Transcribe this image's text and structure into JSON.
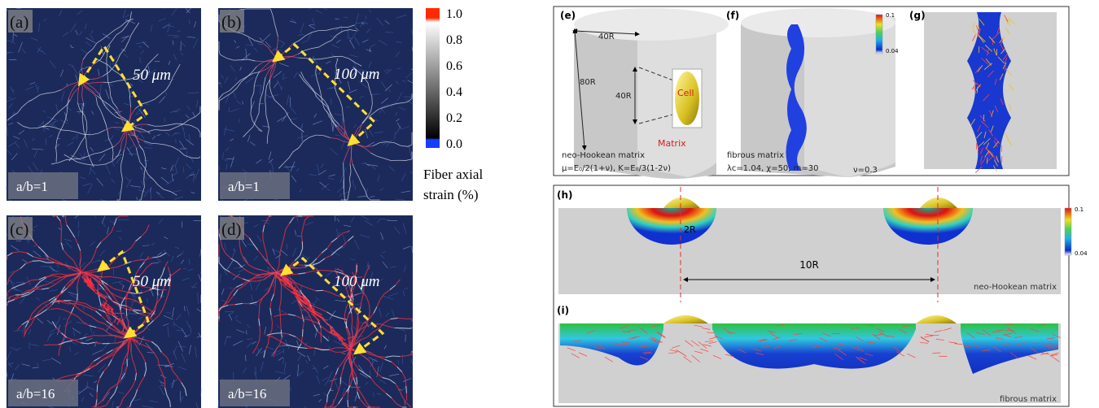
{
  "left_panels": [
    {
      "label": "(a)",
      "scale": "50 μm",
      "ratio": "a/b=1"
    },
    {
      "label": "(b)",
      "scale": "100 μm",
      "ratio": "a/b=1"
    },
    {
      "label": "(c)",
      "scale": "50 μm",
      "ratio": "a/b=16"
    },
    {
      "label": "(d)",
      "scale": "100 μm",
      "ratio": "a/b=16"
    }
  ],
  "colorbar": {
    "ticks": [
      "1.0",
      "0.8",
      "0.6",
      "0.4",
      "0.2",
      "0.0"
    ],
    "title": [
      "Fiber axial",
      "strain (%)"
    ]
  },
  "panel_e": {
    "label": "(e)",
    "width": "40R",
    "height": "80R",
    "spacing": "40R",
    "cell": "Cell",
    "matrix": "Matrix",
    "material": "neo-Hookean matrix",
    "params": "μ=E₀/2(1+ν),  Κ=E₀/3(1-2ν)"
  },
  "panel_f": {
    "label": "(f)",
    "scale_max": "0.1",
    "scale_min": "0.04",
    "material": "fibrous matrix",
    "params": "λc=1.04, χ=50, m=30",
    "poisson": "ν=0.3"
  },
  "panel_g": {
    "label": "(g)"
  },
  "panel_h": {
    "label": "(h)",
    "diameter": "2R",
    "distance": "10R",
    "material": "neo-Hookean matrix",
    "scale_max": "0.1",
    "scale_min": "0.04"
  },
  "panel_i": {
    "label": "(i)",
    "material": "fibrous matrix"
  }
}
